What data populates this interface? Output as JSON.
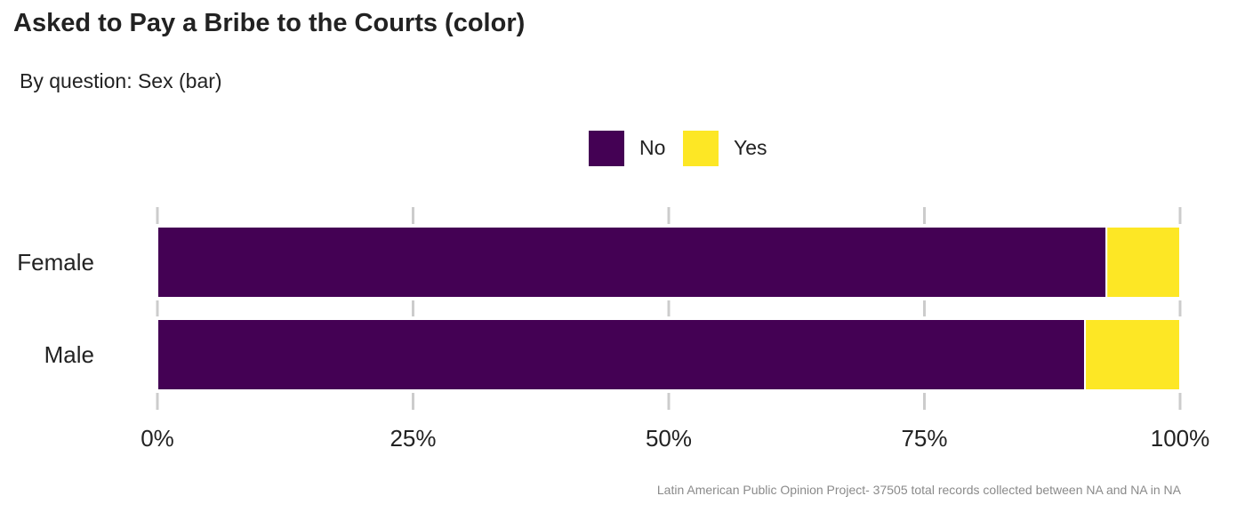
{
  "title": "Asked to Pay a Bribe to the Courts (color)",
  "subtitle": "By question: Sex (bar)",
  "caption": "Latin American Public Opinion Project- 37505 total records collected between NA and NA in  NA",
  "colors": {
    "No": "#440154",
    "Yes": "#FDE725",
    "grid": "#cccccc"
  },
  "chart_data": {
    "type": "bar",
    "orientation": "horizontal",
    "stacked": true,
    "categories": [
      "Female",
      "Male"
    ],
    "series": [
      {
        "name": "No",
        "values": [
          0.928,
          0.907
        ]
      },
      {
        "name": "Yes",
        "values": [
          0.072,
          0.093
        ]
      }
    ],
    "xlim": [
      0,
      1
    ],
    "xticks": [
      0,
      0.25,
      0.5,
      0.75,
      1
    ],
    "xtick_labels": [
      "0%",
      "25%",
      "50%",
      "75%",
      "100%"
    ],
    "legend": {
      "position": "top",
      "entries": [
        "No",
        "Yes"
      ]
    },
    "grid": "vertical"
  }
}
